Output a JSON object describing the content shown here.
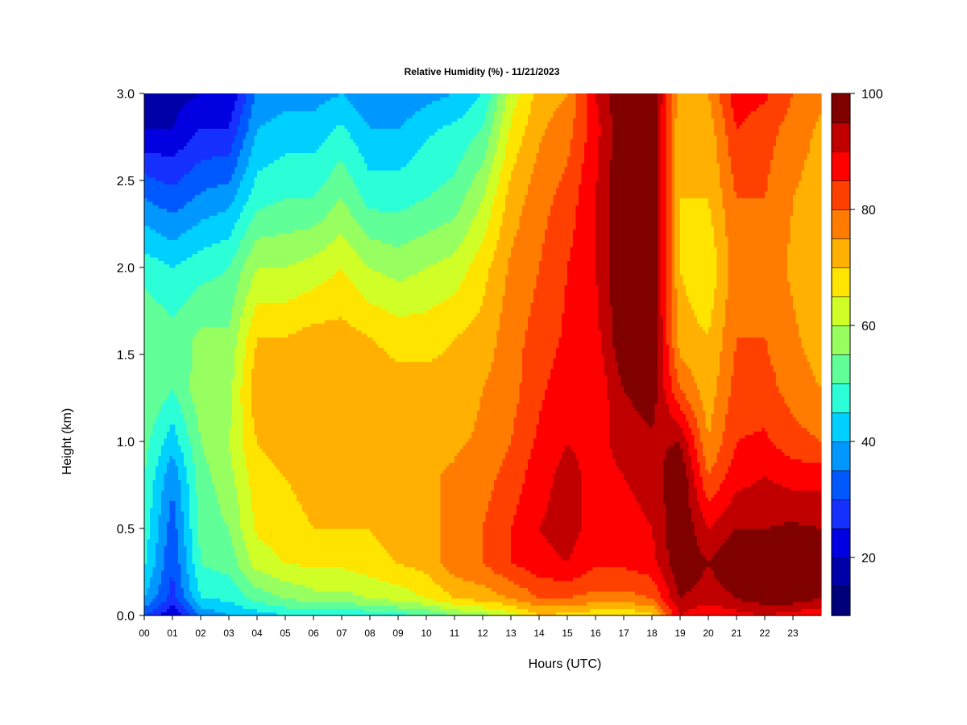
{
  "chart_data": {
    "type": "heatmap",
    "title": "Relative Humidity (%) - 11/21/2023",
    "xlabel": "Hours (UTC)",
    "ylabel": "Height (km)",
    "x_tick_labels": [
      "00",
      "01",
      "02",
      "03",
      "04",
      "05",
      "06",
      "07",
      "08",
      "09",
      "10",
      "11",
      "12",
      "13",
      "14",
      "15",
      "16",
      "17",
      "18",
      "19",
      "20",
      "21",
      "22",
      "23"
    ],
    "y_tick_labels": [
      "0.0",
      "0.5",
      "1.0",
      "1.5",
      "2.0",
      "2.5",
      "3.0"
    ],
    "xlim": [
      0,
      24
    ],
    "ylim": [
      0.0,
      3.0
    ],
    "colorbar": {
      "min": 10,
      "max": 100,
      "step": 5,
      "tick_labels": [
        "20",
        "40",
        "60",
        "80",
        "100"
      ],
      "colors": [
        "#00007A",
        "#0000A8",
        "#0000E0",
        "#1530FF",
        "#0058FF",
        "#0098FF",
        "#00D0FF",
        "#2CFFD8",
        "#60FF98",
        "#98FF60",
        "#D0FF28",
        "#FFE400",
        "#FFB000",
        "#FF7C00",
        "#FF4000",
        "#FF0000",
        "#C00000",
        "#800000"
      ]
    },
    "grid": false,
    "legend": "right",
    "series": [
      {
        "x": 0,
        "heights": [
          0.0,
          0.1,
          0.3,
          0.5,
          0.8,
          1.0,
          1.3,
          1.6,
          2.0,
          2.4,
          2.8,
          3.0
        ],
        "values": [
          30,
          40,
          46,
          48,
          50,
          52,
          55,
          55,
          48,
          35,
          20,
          18
        ]
      },
      {
        "x": 1,
        "heights": [
          0.0,
          0.1,
          0.3,
          0.5,
          0.8,
          1.0,
          1.3,
          1.6,
          2.0,
          2.4,
          2.8,
          3.0
        ],
        "values": [
          20,
          28,
          30,
          32,
          36,
          42,
          50,
          52,
          45,
          32,
          20,
          18
        ]
      },
      {
        "x": 2,
        "heights": [
          0.0,
          0.1,
          0.3,
          0.5,
          0.8,
          1.0,
          1.3,
          1.6,
          2.0,
          2.4,
          2.8,
          3.0
        ],
        "values": [
          35,
          45,
          50,
          52,
          53,
          55,
          58,
          56,
          48,
          36,
          25,
          20
        ]
      },
      {
        "x": 3,
        "heights": [
          0.0,
          0.1,
          0.3,
          0.5,
          0.8,
          1.0,
          1.3,
          1.6,
          2.0,
          2.4,
          2.8,
          3.0
        ],
        "values": [
          40,
          46,
          52,
          55,
          58,
          60,
          58,
          56,
          50,
          38,
          25,
          20
        ]
      },
      {
        "x": 4,
        "heights": [
          0.0,
          0.1,
          0.3,
          0.5,
          0.8,
          1.0,
          1.3,
          1.6,
          2.0,
          2.4,
          2.8,
          3.0
        ],
        "values": [
          42,
          52,
          62,
          66,
          68,
          70,
          74,
          70,
          60,
          48,
          40,
          36
        ]
      },
      {
        "x": 5,
        "heights": [
          0.0,
          0.1,
          0.3,
          0.5,
          0.8,
          1.0,
          1.3,
          1.6,
          2.0,
          2.4,
          2.8,
          3.0
        ],
        "values": [
          45,
          55,
          65,
          68,
          70,
          72,
          75,
          70,
          60,
          50,
          42,
          38
        ]
      },
      {
        "x": 6,
        "heights": [
          0.0,
          0.1,
          0.3,
          0.5,
          0.8,
          1.0,
          1.3,
          1.6,
          2.0,
          2.4,
          2.8,
          3.0
        ],
        "values": [
          45,
          58,
          66,
          70,
          72,
          72,
          75,
          72,
          62,
          50,
          42,
          38
        ]
      },
      {
        "x": 7,
        "heights": [
          0.0,
          0.1,
          0.3,
          0.5,
          0.8,
          1.0,
          1.3,
          1.6,
          2.0,
          2.4,
          2.8,
          3.0
        ],
        "values": [
          45,
          58,
          66,
          70,
          72,
          72,
          74,
          72,
          65,
          55,
          46,
          40
        ]
      },
      {
        "x": 8,
        "heights": [
          0.0,
          0.1,
          0.3,
          0.5,
          0.8,
          1.0,
          1.3,
          1.6,
          2.0,
          2.4,
          2.8,
          3.0
        ],
        "values": [
          46,
          60,
          68,
          70,
          72,
          72,
          74,
          70,
          60,
          48,
          40,
          35
        ]
      },
      {
        "x": 9,
        "heights": [
          0.0,
          0.1,
          0.3,
          0.5,
          0.8,
          1.0,
          1.3,
          1.6,
          2.0,
          2.4,
          2.8,
          3.0
        ],
        "values": [
          48,
          62,
          70,
          72,
          72,
          72,
          72,
          68,
          58,
          48,
          40,
          35
        ]
      },
      {
        "x": 10,
        "heights": [
          0.0,
          0.1,
          0.3,
          0.5,
          0.8,
          1.0,
          1.3,
          1.6,
          2.0,
          2.4,
          2.8,
          3.0
        ],
        "values": [
          50,
          65,
          72,
          74,
          74,
          72,
          72,
          68,
          60,
          50,
          44,
          38
        ]
      },
      {
        "x": 11,
        "heights": [
          0.0,
          0.1,
          0.3,
          0.5,
          0.8,
          1.0,
          1.3,
          1.6,
          2.0,
          2.4,
          2.8,
          3.0
        ],
        "values": [
          55,
          70,
          78,
          76,
          76,
          74,
          72,
          70,
          62,
          52,
          46,
          40
        ]
      },
      {
        "x": 12,
        "heights": [
          0.0,
          0.1,
          0.3,
          0.5,
          0.8,
          1.0,
          1.3,
          1.6,
          2.0,
          2.4,
          2.8,
          3.0
        ],
        "values": [
          58,
          72,
          80,
          80,
          78,
          76,
          75,
          72,
          68,
          60,
          50,
          45
        ]
      },
      {
        "x": 13,
        "heights": [
          0.0,
          0.1,
          0.3,
          0.5,
          0.8,
          1.0,
          1.3,
          1.6,
          2.0,
          2.4,
          2.8,
          3.0
        ],
        "values": [
          62,
          75,
          85,
          85,
          82,
          80,
          78,
          78,
          76,
          72,
          66,
          62
        ]
      },
      {
        "x": 14,
        "heights": [
          0.0,
          0.1,
          0.3,
          0.5,
          0.8,
          1.0,
          1.3,
          1.6,
          2.0,
          2.4,
          2.8,
          3.0
        ],
        "values": [
          70,
          80,
          88,
          90,
          88,
          86,
          84,
          82,
          80,
          78,
          74,
          72
        ]
      },
      {
        "x": 15,
        "heights": [
          0.0,
          0.1,
          0.3,
          0.5,
          0.8,
          1.0,
          1.3,
          1.6,
          2.0,
          2.4,
          2.8,
          3.0
        ],
        "values": [
          68,
          80,
          90,
          92,
          92,
          90,
          88,
          86,
          85,
          82,
          78,
          75
        ]
      },
      {
        "x": 16,
        "heights": [
          0.0,
          0.1,
          0.3,
          0.5,
          0.8,
          1.0,
          1.3,
          1.6,
          2.0,
          2.4,
          2.8,
          3.0
        ],
        "values": [
          66,
          78,
          86,
          88,
          88,
          88,
          86,
          88,
          90,
          90,
          88,
          90
        ]
      },
      {
        "x": 17,
        "heights": [
          0.0,
          0.1,
          0.3,
          0.5,
          0.8,
          1.0,
          1.3,
          1.6,
          2.0,
          2.4,
          2.8,
          3.0
        ],
        "values": [
          65,
          78,
          86,
          88,
          90,
          92,
          95,
          100,
          100,
          100,
          100,
          100
        ]
      },
      {
        "x": 18,
        "heights": [
          0.0,
          0.1,
          0.3,
          0.5,
          0.8,
          1.0,
          1.3,
          1.6,
          2.0,
          2.4,
          2.8,
          3.0
        ],
        "values": [
          68,
          80,
          88,
          90,
          92,
          94,
          98,
          100,
          100,
          100,
          100,
          100
        ]
      },
      {
        "x": 19,
        "heights": [
          0.0,
          0.1,
          0.3,
          0.5,
          0.8,
          1.0,
          1.3,
          1.6,
          2.0,
          2.4,
          2.8,
          3.0
        ],
        "values": [
          90,
          95,
          100,
          100,
          100,
          95,
          80,
          72,
          70,
          70,
          70,
          72
        ]
      },
      {
        "x": 20,
        "heights": [
          0.0,
          0.1,
          0.3,
          0.5,
          0.8,
          1.0,
          1.3,
          1.6,
          2.0,
          2.4,
          2.8,
          3.0
        ],
        "values": [
          85,
          92,
          95,
          90,
          80,
          75,
          72,
          70,
          66,
          70,
          72,
          75
        ]
      },
      {
        "x": 21,
        "heights": [
          0.0,
          0.1,
          0.3,
          0.5,
          0.8,
          1.0,
          1.3,
          1.6,
          2.0,
          2.4,
          2.8,
          3.0
        ],
        "values": [
          88,
          95,
          100,
          95,
          88,
          85,
          82,
          80,
          78,
          80,
          85,
          88
        ]
      },
      {
        "x": 22,
        "heights": [
          0.0,
          0.1,
          0.3,
          0.5,
          0.8,
          1.0,
          1.3,
          1.6,
          2.0,
          2.4,
          2.8,
          3.0
        ],
        "values": [
          90,
          98,
          100,
          95,
          90,
          86,
          82,
          80,
          78,
          80,
          82,
          86
        ]
      },
      {
        "x": 23,
        "heights": [
          0.0,
          0.1,
          0.3,
          0.5,
          0.8,
          1.0,
          1.3,
          1.6,
          2.0,
          2.4,
          2.8,
          3.0
        ],
        "values": [
          88,
          98,
          100,
          96,
          88,
          82,
          78,
          76,
          74,
          75,
          78,
          80
        ]
      },
      {
        "x": 24,
        "heights": [
          0.0,
          0.1,
          0.3,
          0.5,
          0.8,
          1.0,
          1.3,
          1.6,
          2.0,
          2.4,
          2.8,
          3.0
        ],
        "values": [
          85,
          95,
          100,
          95,
          88,
          80,
          75,
          72,
          70,
          72,
          74,
          76
        ]
      }
    ]
  }
}
